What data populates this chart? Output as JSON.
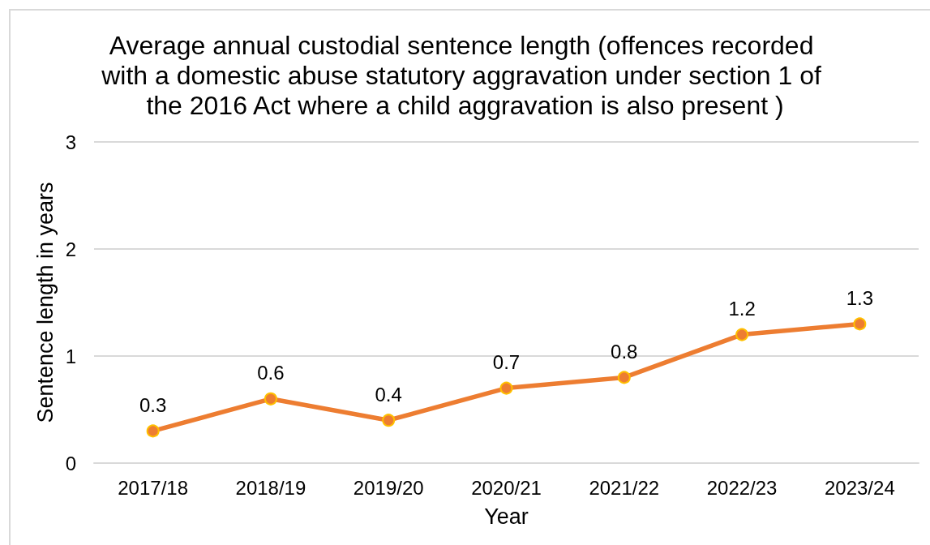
{
  "chart_data": {
    "type": "line",
    "title": "Average annual custodial sentence length (offences recorded with a domestic abuse statutory aggravation under section 1 of the 2016 Act where a child aggravation is also present )",
    "xlabel": "Year",
    "ylabel": "Sentence length in years",
    "categories": [
      "2017/18",
      "2018/19",
      "2019/20",
      "2020/21",
      "2021/22",
      "2022/23",
      "2023/24"
    ],
    "series": [
      {
        "color": "#ed7d31",
        "values": [
          0.3,
          0.6,
          0.4,
          0.7,
          0.8,
          1.2,
          1.3
        ]
      }
    ],
    "ylim": [
      0,
      3
    ],
    "yticks": [
      0,
      1,
      2,
      3
    ],
    "grid": "y",
    "marker": "circle",
    "line_style": "solid",
    "data_labels": true
  }
}
